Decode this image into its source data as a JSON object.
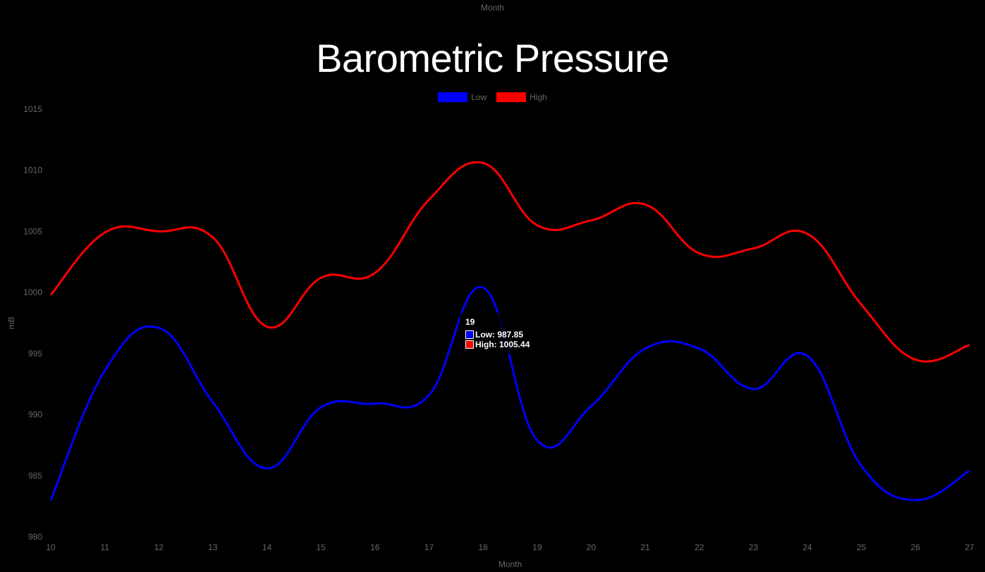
{
  "chart_data": {
    "type": "line",
    "title": "Barometric Pressure",
    "xlabel": "Month",
    "x2label": "Month",
    "ylabel": "mB",
    "x": [
      10,
      11,
      12,
      13,
      14,
      15,
      16,
      17,
      18,
      19,
      20,
      21,
      22,
      23,
      24,
      25,
      26,
      27
    ],
    "xticks": [
      "10",
      "11",
      "12",
      "13",
      "14",
      "15",
      "16",
      "17",
      "18",
      "19",
      "20",
      "21",
      "22",
      "23",
      "24",
      "25",
      "26",
      "27"
    ],
    "ylim": [
      980,
      1015
    ],
    "yticks": [
      "1015",
      "1010",
      "1005",
      "1000",
      "995",
      "990",
      "985",
      "980"
    ],
    "legend_position": "top-center",
    "grid": false,
    "series": [
      {
        "name": "Low",
        "color": "#0000ff",
        "values": [
          983.0,
          993.6,
          997.1,
          991.0,
          985.6,
          990.6,
          990.9,
          991.6,
          1000.4,
          987.9,
          990.7,
          995.4,
          995.4,
          992.1,
          994.8,
          985.8,
          983.0,
          985.4
        ]
      },
      {
        "name": "High",
        "color": "#ff0000",
        "values": [
          999.8,
          1004.9,
          1005.0,
          1004.5,
          997.2,
          1001.2,
          1001.6,
          1007.6,
          1010.6,
          1005.5,
          1005.9,
          1007.2,
          1003.2,
          1003.6,
          1004.8,
          999.0,
          994.5,
          995.7
        ]
      }
    ],
    "tooltip": {
      "title": "19",
      "items": [
        {
          "label": "Low: 987.85",
          "color": "#0000ff"
        },
        {
          "label": "High: 1005.44",
          "color": "#ff0000"
        }
      ]
    }
  }
}
